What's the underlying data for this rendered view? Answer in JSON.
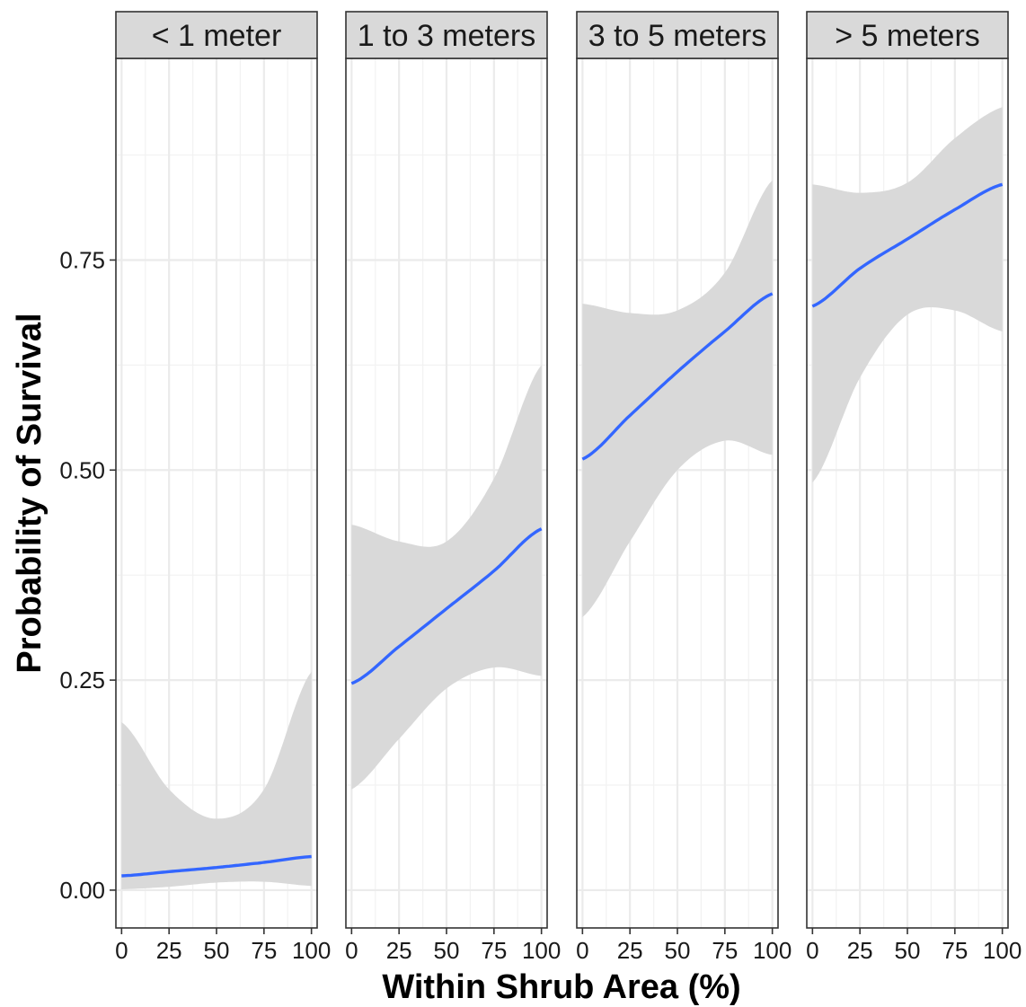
{
  "chart_data": {
    "type": "line",
    "facets": [
      "< 1 meter",
      "1 to 3 meters",
      "3 to 5 meters",
      "> 5 meters"
    ],
    "xlabel": "Within Shrub Area (%)",
    "ylabel": "Probability of Survival",
    "xlim": [
      -3,
      103
    ],
    "ylim": [
      -0.045,
      0.99
    ],
    "x_ticks": [
      0,
      25,
      50,
      75,
      100
    ],
    "x_tick_labels": [
      "0",
      "25",
      "50",
      "75",
      "100"
    ],
    "y_ticks": [
      0.0,
      0.25,
      0.5,
      0.75
    ],
    "y_tick_labels": [
      "0.00",
      "0.25",
      "0.50",
      "0.75"
    ],
    "grid": true,
    "line_color": "#3366FF",
    "ribbon_color": "#D9D9D9",
    "x": [
      0,
      25,
      50,
      75,
      100
    ],
    "series": [
      {
        "facet": "< 1 meter",
        "fit": [
          0.017,
          0.022,
          0.027,
          0.033,
          0.04
        ],
        "lower": [
          0.001,
          0.004,
          0.009,
          0.01,
          0.005
        ],
        "upper": [
          0.2,
          0.12,
          0.085,
          0.12,
          0.26
        ]
      },
      {
        "facet": "1 to 3 meters",
        "fit": [
          0.246,
          0.29,
          0.335,
          0.38,
          0.43
        ],
        "lower": [
          0.12,
          0.18,
          0.24,
          0.265,
          0.255
        ],
        "upper": [
          0.435,
          0.415,
          0.415,
          0.49,
          0.625
        ]
      },
      {
        "facet": "3 to 5 meters",
        "fit": [
          0.513,
          0.565,
          0.617,
          0.665,
          0.71
        ],
        "lower": [
          0.325,
          0.415,
          0.5,
          0.535,
          0.518
        ],
        "upper": [
          0.698,
          0.687,
          0.69,
          0.735,
          0.845
        ]
      },
      {
        "facet": "> 5 meters",
        "fit": [
          0.695,
          0.74,
          0.775,
          0.81,
          0.84
        ],
        "lower": [
          0.485,
          0.61,
          0.685,
          0.69,
          0.665
        ],
        "upper": [
          0.84,
          0.83,
          0.842,
          0.895,
          0.932
        ]
      }
    ]
  }
}
